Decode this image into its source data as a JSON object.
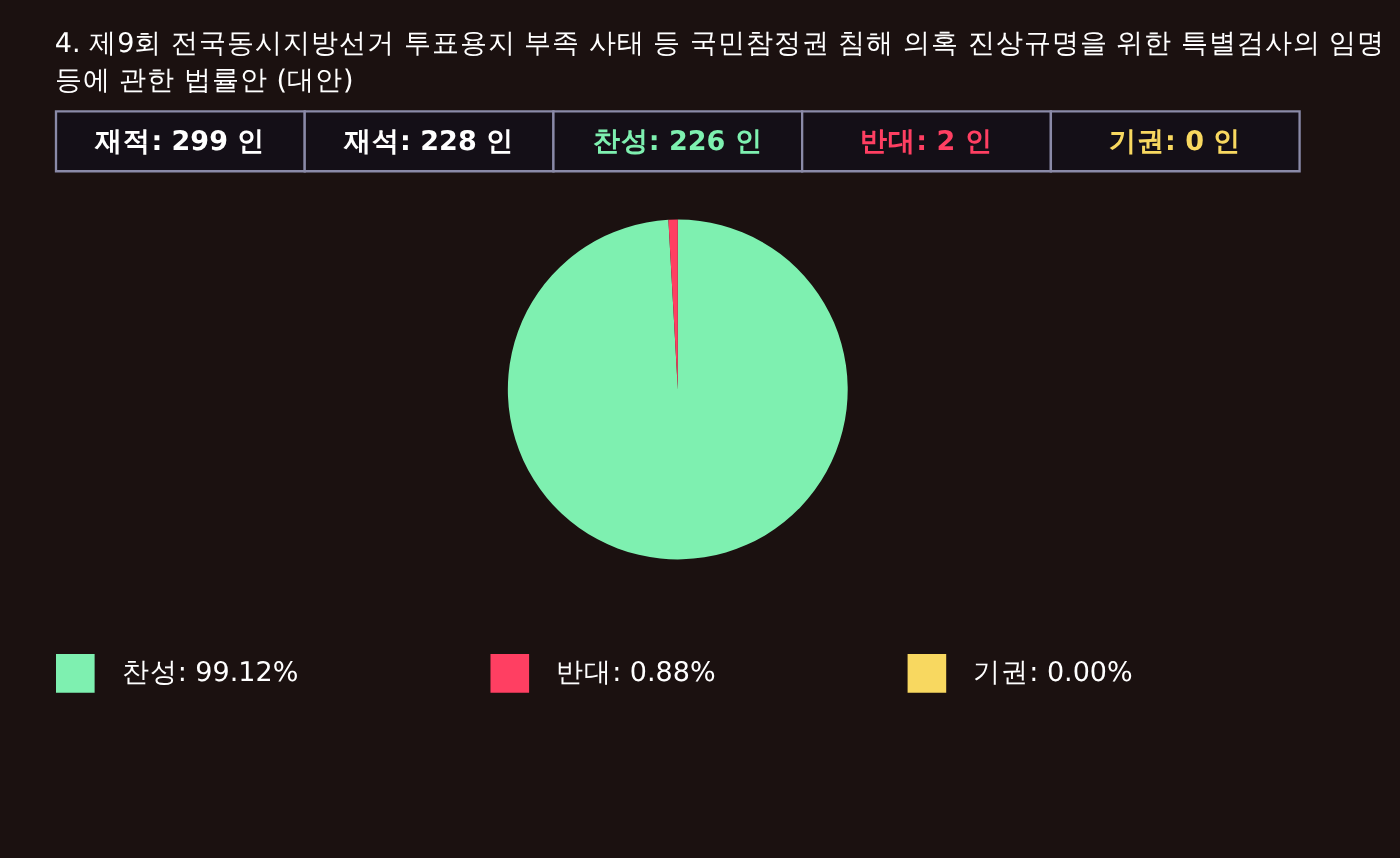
{
  "chart_data": {
    "type": "pie",
    "title": "4. 제9회 전국동시지방선거 투표용지 부족 사태 등 국민참정권 침해 의혹 진상규명을 위한 특별검사의 임명 등에 관한 법률안 (대안)",
    "categories": [
      "찬성",
      "반대",
      "기권"
    ],
    "values": [
      99.12,
      0.88,
      0.0
    ],
    "value_labels": [
      "99.12%",
      "0.88%",
      "0.00%"
    ],
    "colors": [
      "#7ef0b0",
      "#ff3f62",
      "#f8d860"
    ],
    "legend": "bottom",
    "annotations": [
      "재적: 299 인",
      "재석: 228 인",
      "찬성: 226 인",
      "반대: 2 인",
      "기권: 0 인"
    ]
  }
}
